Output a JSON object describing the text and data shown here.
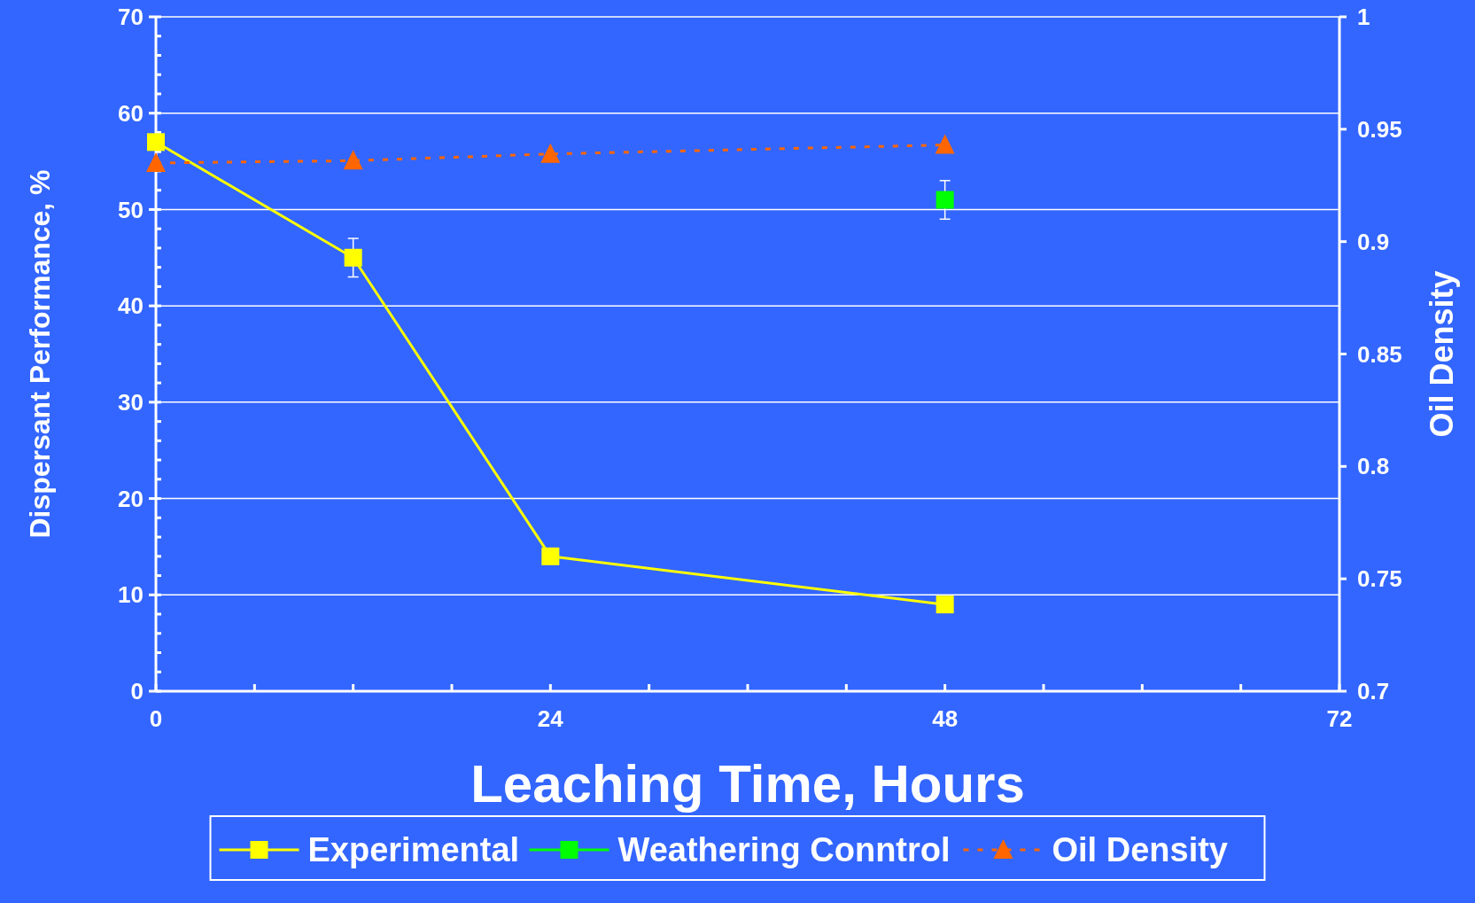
{
  "chart_data": {
    "type": "line",
    "xlabel": "Leaching Time, Hours",
    "ylabel": "Dispersant Performance, %",
    "y2label": "Oil Density",
    "xlim": [
      0,
      72
    ],
    "xticks": [
      0,
      {
        "value": 6,
        "label": null
      },
      {
        "value": 12,
        "label": null
      },
      {
        "value": 18,
        "label": null
      },
      24,
      {
        "value": 30,
        "label": null
      },
      {
        "value": 36,
        "label": null
      },
      {
        "value": 42,
        "label": null
      },
      48,
      {
        "value": 54,
        "label": null
      },
      {
        "value": 60,
        "label": null
      },
      {
        "value": 66,
        "label": null
      },
      72
    ],
    "ylim": [
      0,
      70
    ],
    "yticks": [
      0,
      10,
      20,
      30,
      40,
      50,
      60,
      70
    ],
    "y2lim": [
      0.7,
      1
    ],
    "y2ticks": [
      0.7,
      0.75,
      0.8,
      0.85,
      0.9,
      0.95,
      1
    ],
    "grid": "y",
    "legend": "bottom",
    "series": [
      {
        "name": "Experimental",
        "color": "#ffff00",
        "marker": "square",
        "line_style": "solid",
        "x": [
          0,
          12,
          24,
          48
        ],
        "values": [
          57,
          45,
          14,
          9
        ],
        "errors": [
          null,
          2,
          null,
          null
        ]
      },
      {
        "name": "Weathering Conntrol",
        "color": "#00ff00",
        "marker": "square",
        "line_style": "solid",
        "x": [
          48
        ],
        "values": [
          51
        ],
        "errors": [
          2
        ]
      },
      {
        "name": "Oil Density",
        "color": "#ff6600",
        "marker": "triangle",
        "line_style": "dotted",
        "axis": "y2",
        "x": [
          0,
          12,
          24,
          48
        ],
        "values": [
          0.935,
          0.936,
          0.939,
          0.943
        ]
      }
    ]
  }
}
